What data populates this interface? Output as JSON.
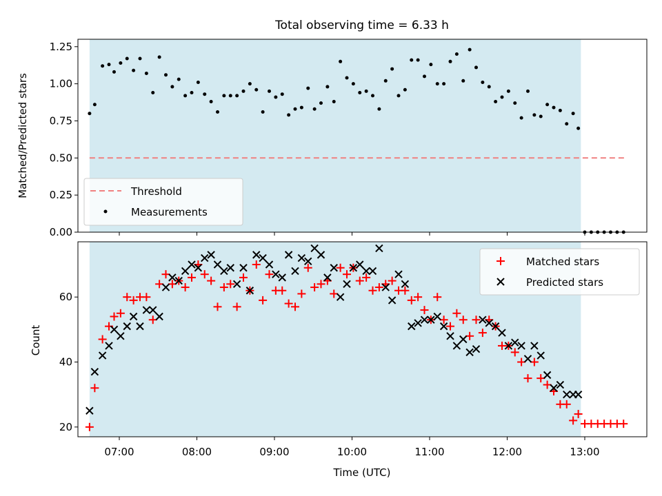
{
  "chart_data": [
    {
      "type": "scatter",
      "title": "Total observing time = 6.33 h",
      "xlabel": "",
      "ylabel": "Matched/Predicted stars",
      "ylim": [
        0,
        1.3
      ],
      "xlim": [
        "06:28",
        "13:48"
      ],
      "y_ticks": [
        "0.00",
        "0.25",
        "0.50",
        "0.75",
        "1.00",
        "1.25"
      ],
      "shaded_interval": {
        "start": "06:37",
        "end": "12:57",
        "color": "#d4eaf1"
      },
      "threshold": {
        "name": "Threshold",
        "value": 0.5,
        "x_start": "06:37",
        "x_end": "13:33",
        "color": "#f08080",
        "style": "dashed"
      },
      "legend": {
        "position": "lower-left",
        "entries": [
          "Threshold",
          "Measurements"
        ]
      },
      "series": [
        {
          "name": "Measurements",
          "marker": "dot",
          "color": "#000000",
          "x": [
            "06:37",
            "06:41",
            "06:47",
            "06:52",
            "06:56",
            "07:01",
            "07:06",
            "07:11",
            "07:16",
            "07:21",
            "07:26",
            "07:31",
            "07:36",
            "07:41",
            "07:46",
            "07:51",
            "07:56",
            "08:01",
            "08:06",
            "08:11",
            "08:16",
            "08:21",
            "08:26",
            "08:31",
            "08:36",
            "08:41",
            "08:46",
            "08:51",
            "08:56",
            "09:01",
            "09:06",
            "09:11",
            "09:16",
            "09:21",
            "09:26",
            "09:31",
            "09:36",
            "09:41",
            "09:46",
            "09:51",
            "09:56",
            "10:01",
            "10:06",
            "10:11",
            "10:16",
            "10:21",
            "10:26",
            "10:31",
            "10:36",
            "10:41",
            "10:46",
            "10:51",
            "10:56",
            "11:01",
            "11:06",
            "11:11",
            "11:16",
            "11:21",
            "11:26",
            "11:31",
            "11:36",
            "11:41",
            "11:46",
            "11:51",
            "11:56",
            "12:01",
            "12:06",
            "12:11",
            "12:16",
            "12:21",
            "12:26",
            "12:31",
            "12:36",
            "12:41",
            "12:46",
            "12:51",
            "12:55",
            "13:00",
            "13:05",
            "13:10",
            "13:15",
            "13:20",
            "13:25",
            "13:30"
          ],
          "y": [
            0.8,
            0.86,
            1.12,
            1.13,
            1.08,
            1.14,
            1.17,
            1.09,
            1.17,
            1.07,
            0.94,
            1.18,
            1.06,
            0.98,
            1.03,
            0.92,
            0.94,
            1.01,
            0.93,
            0.88,
            0.81,
            0.92,
            0.92,
            0.92,
            0.95,
            1.0,
            0.96,
            0.81,
            0.95,
            0.91,
            0.93,
            0.79,
            0.83,
            0.84,
            0.97,
            0.83,
            0.87,
            0.98,
            0.88,
            1.15,
            1.04,
            1.0,
            0.94,
            0.95,
            0.92,
            0.83,
            1.02,
            1.1,
            0.92,
            0.96,
            1.16,
            1.16,
            1.05,
            1.13,
            1.0,
            1.0,
            1.15,
            1.2,
            1.02,
            1.23,
            1.11,
            1.01,
            0.98,
            0.88,
            0.91,
            0.95,
            0.87,
            0.77,
            0.95,
            0.79,
            0.78,
            0.86,
            0.84,
            0.82,
            0.73,
            0.8,
            0.7,
            0,
            0,
            0,
            0,
            0,
            0,
            0
          ]
        }
      ]
    },
    {
      "type": "scatter",
      "title": "",
      "xlabel": "Time (UTC)",
      "ylabel": "Count",
      "ylim": [
        17,
        77
      ],
      "y_ticks": [
        "20",
        "40",
        "60"
      ],
      "x_ticks": [
        "07:00",
        "08:00",
        "09:00",
        "10:00",
        "11:00",
        "12:00",
        "13:00"
      ],
      "shaded_interval": {
        "start": "06:37",
        "end": "12:57",
        "color": "#d4eaf1"
      },
      "legend": {
        "position": "top-right",
        "entries": [
          "Matched stars",
          "Predicted stars"
        ]
      },
      "x": [
        "06:37",
        "06:41",
        "06:47",
        "06:52",
        "06:56",
        "07:01",
        "07:06",
        "07:11",
        "07:16",
        "07:21",
        "07:26",
        "07:31",
        "07:36",
        "07:41",
        "07:46",
        "07:51",
        "07:56",
        "08:01",
        "08:06",
        "08:11",
        "08:16",
        "08:21",
        "08:26",
        "08:31",
        "08:36",
        "08:41",
        "08:46",
        "08:51",
        "08:56",
        "09:01",
        "09:06",
        "09:11",
        "09:16",
        "09:21",
        "09:26",
        "09:31",
        "09:36",
        "09:41",
        "09:46",
        "09:51",
        "09:56",
        "10:01",
        "10:06",
        "10:11",
        "10:16",
        "10:21",
        "10:26",
        "10:31",
        "10:36",
        "10:41",
        "10:46",
        "10:51",
        "10:56",
        "11:01",
        "11:06",
        "11:11",
        "11:16",
        "11:21",
        "11:26",
        "11:31",
        "11:36",
        "11:41",
        "11:46",
        "11:51",
        "11:56",
        "12:01",
        "12:06",
        "12:11",
        "12:16",
        "12:21",
        "12:26",
        "12:31",
        "12:36",
        "12:41",
        "12:46",
        "12:51",
        "12:55",
        "13:00",
        "13:05",
        "13:10",
        "13:15",
        "13:20",
        "13:25",
        "13:30"
      ],
      "series": [
        {
          "name": "Matched stars",
          "marker": "plus",
          "color": "#ff0000",
          "values": [
            20,
            32,
            47,
            51,
            54,
            55,
            60,
            59,
            60,
            60,
            53,
            64,
            67,
            64,
            65,
            63,
            66,
            70,
            67,
            65,
            57,
            63,
            64,
            57,
            66,
            62,
            70,
            59,
            67,
            62,
            62,
            58,
            57,
            61,
            69,
            63,
            64,
            65,
            61,
            69,
            67,
            69,
            65,
            66,
            62,
            63,
            64,
            65,
            62,
            62,
            59,
            60,
            56,
            53,
            60,
            53,
            51,
            55,
            53,
            48,
            53,
            49,
            53,
            51,
            45,
            45,
            43,
            40,
            35,
            40,
            35,
            33,
            31,
            27,
            27,
            22,
            24,
            21,
            21,
            21,
            21,
            21,
            21,
            21
          ]
        },
        {
          "name": "Predicted stars",
          "marker": "x",
          "color": "#000000",
          "values": [
            25,
            37,
            42,
            45,
            50,
            48,
            51,
            54,
            51,
            56,
            56,
            54,
            63,
            66,
            65,
            68,
            70,
            69,
            72,
            73,
            70,
            68,
            69,
            64,
            69,
            62,
            73,
            72,
            70,
            67,
            66,
            73,
            68,
            72,
            71,
            75,
            73,
            66,
            69,
            60,
            64,
            69,
            70,
            68,
            68,
            75,
            63,
            59,
            67,
            64,
            51,
            52,
            53,
            53,
            54,
            51,
            48,
            45,
            47,
            43,
            44,
            53,
            52,
            51,
            49,
            45,
            46,
            45,
            41,
            45,
            42,
            36,
            32,
            33,
            30,
            30,
            30
          ]
        }
      ]
    }
  ]
}
